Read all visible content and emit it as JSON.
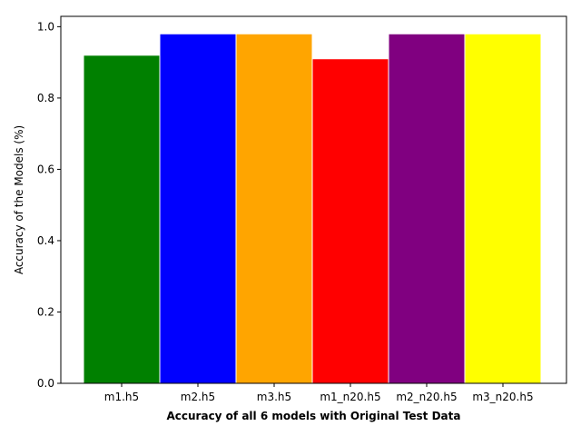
{
  "chart_data": {
    "type": "bar",
    "title": "",
    "xlabel": "Accuracy of all 6 models with Original Test Data",
    "ylabel": "Accuracy of the Models (%)",
    "categories": [
      "m1.h5",
      "m2.h5",
      "m3.h5",
      "m1_n20.h5",
      "m2_n20.h5",
      "m3_n20.h5"
    ],
    "values": [
      0.92,
      0.98,
      0.98,
      0.91,
      0.98,
      0.98
    ],
    "colors": [
      "#008000",
      "#0000ff",
      "#ffa500",
      "#ff0000",
      "#800080",
      "#ffff00"
    ],
    "edge_color": "#ffffff",
    "ylim": [
      0,
      1.029
    ],
    "yticks": [
      "0.0",
      "0.2",
      "0.4",
      "0.6",
      "0.8",
      "1.0"
    ],
    "grid": false,
    "legend": "none"
  }
}
